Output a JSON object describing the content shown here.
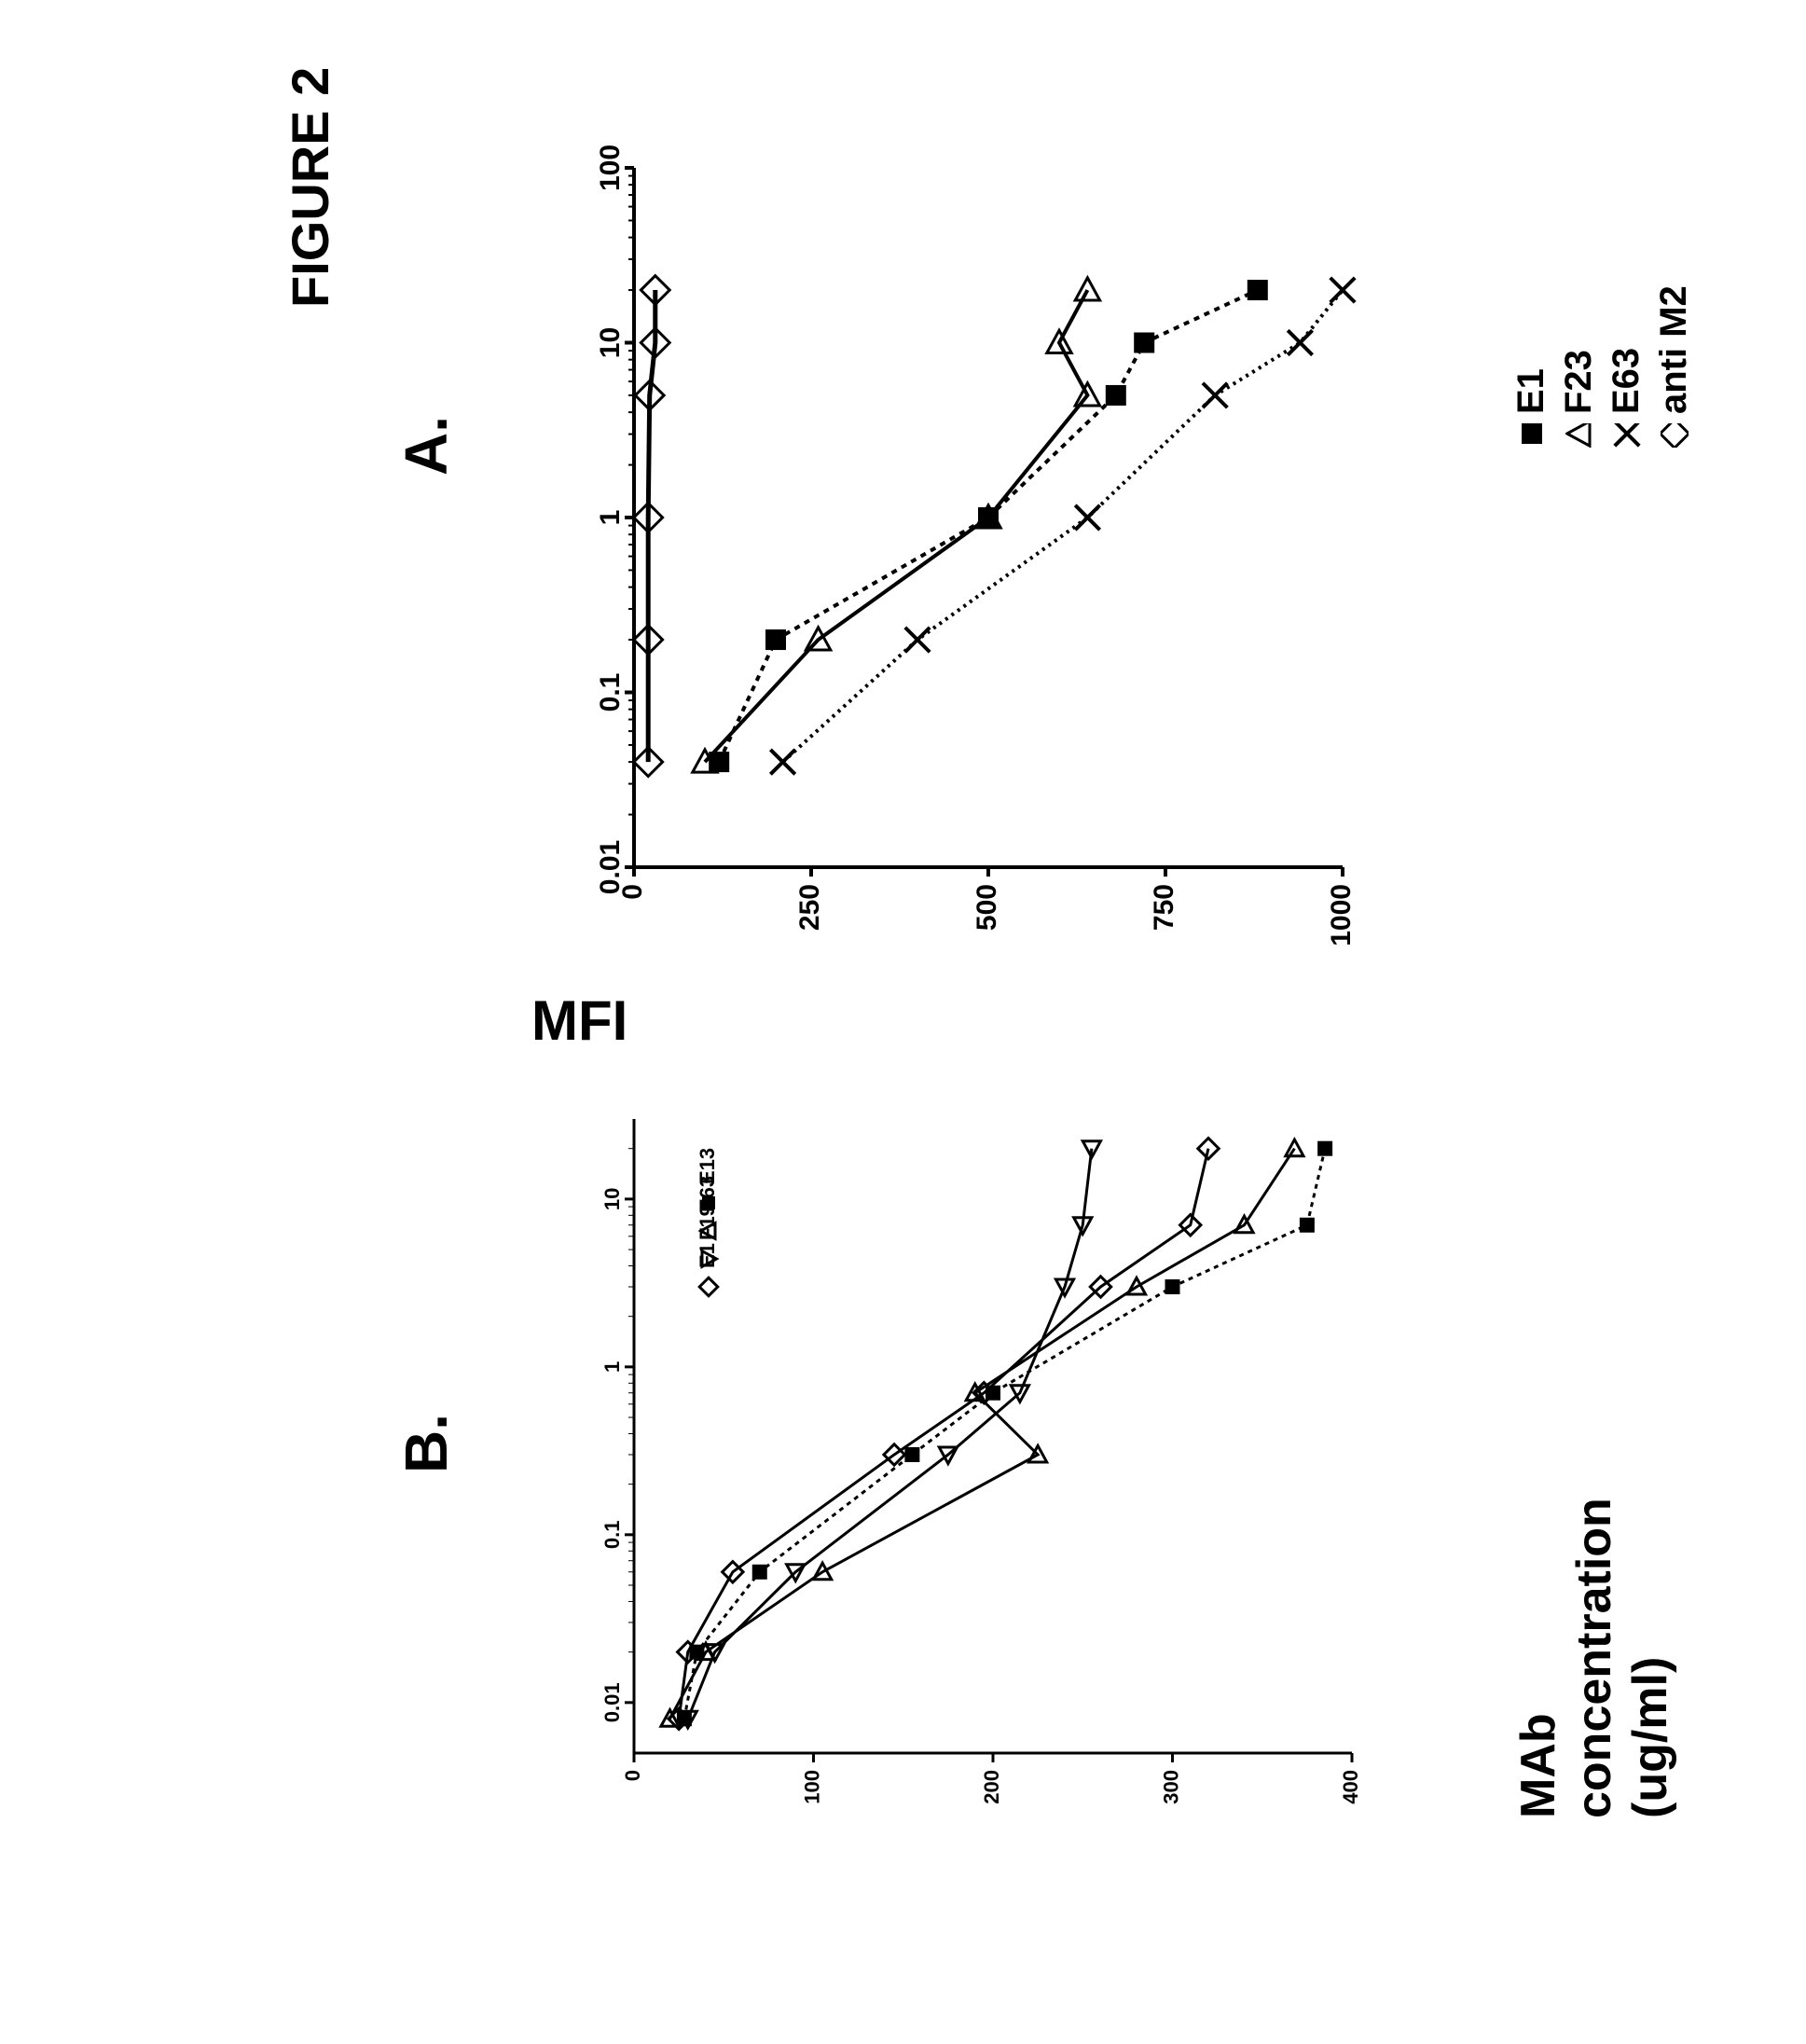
{
  "figure_title": "FIGURE 2",
  "title_fontsize": 56,
  "panelA": {
    "label": "A.",
    "label_fontsize": 64,
    "type": "line-scatter",
    "xscale": "log",
    "xlim": [
      0.01,
      100
    ],
    "ylim": [
      0,
      1000
    ],
    "xtick_labels": [
      "0.01",
      "0.1",
      "1",
      "10",
      "100"
    ],
    "ytick_labels": [
      "0",
      "250",
      "500",
      "750",
      "1000"
    ],
    "axis_color": "#000000",
    "axis_linewidth": 4,
    "tick_fontsize": 30,
    "background_color": "#ffffff",
    "series": [
      {
        "name": "E1",
        "marker": "filled-square",
        "color": "#000000",
        "line_dash": "6,6",
        "line_width": 4,
        "points": [
          {
            "x": 0.04,
            "y": 120
          },
          {
            "x": 0.2,
            "y": 200
          },
          {
            "x": 1,
            "y": 500
          },
          {
            "x": 5,
            "y": 680
          },
          {
            "x": 10,
            "y": 720
          },
          {
            "x": 20,
            "y": 880
          }
        ]
      },
      {
        "name": "F23",
        "marker": "open-triangle",
        "color": "#000000",
        "line_dash": "none",
        "line_width": 4,
        "points": [
          {
            "x": 0.04,
            "y": 100
          },
          {
            "x": 0.2,
            "y": 260
          },
          {
            "x": 1,
            "y": 500
          },
          {
            "x": 5,
            "y": 640
          },
          {
            "x": 10,
            "y": 600
          },
          {
            "x": 20,
            "y": 640
          }
        ]
      },
      {
        "name": "E63",
        "marker": "x",
        "color": "#000000",
        "line_dash": "3,5",
        "line_width": 4,
        "points": [
          {
            "x": 0.04,
            "y": 210
          },
          {
            "x": 0.2,
            "y": 400
          },
          {
            "x": 1,
            "y": 640
          },
          {
            "x": 5,
            "y": 820
          },
          {
            "x": 10,
            "y": 940
          },
          {
            "x": 20,
            "y": 1000
          }
        ]
      },
      {
        "name": "anti M2",
        "marker": "open-diamond",
        "color": "#000000",
        "line_dash": "none",
        "line_width": 5,
        "points": [
          {
            "x": 0.04,
            "y": 20
          },
          {
            "x": 0.2,
            "y": 20
          },
          {
            "x": 1,
            "y": 20
          },
          {
            "x": 5,
            "y": 22
          },
          {
            "x": 10,
            "y": 30
          },
          {
            "x": 20,
            "y": 30
          }
        ]
      }
    ],
    "legend": {
      "fontsize": 40,
      "items": [
        {
          "marker": "filled-square",
          "label": "E1"
        },
        {
          "marker": "open-triangle",
          "label": "F23"
        },
        {
          "marker": "x",
          "label": "E63"
        },
        {
          "marker": "open-diamond",
          "label": "anti M2"
        }
      ]
    }
  },
  "panelB": {
    "label": "B.",
    "label_fontsize": 64,
    "type": "line-scatter",
    "xscale": "log",
    "xlim": [
      0.005,
      30
    ],
    "ylim": [
      0,
      400
    ],
    "xtick_labels": [
      "0.01",
      "0.1",
      "1",
      "10"
    ],
    "ytick_labels": [
      "0",
      "100",
      "200",
      "300",
      "400"
    ],
    "axis_color": "#000000",
    "axis_linewidth": 3,
    "tick_fontsize": 22,
    "background_color": "#ffffff",
    "series": [
      {
        "name": "E13",
        "marker": "filled-square",
        "color": "#000000",
        "line_dash": "5,5",
        "line_width": 3,
        "points": [
          {
            "x": 0.008,
            "y": 28
          },
          {
            "x": 0.02,
            "y": 35
          },
          {
            "x": 0.06,
            "y": 70
          },
          {
            "x": 0.3,
            "y": 155
          },
          {
            "x": 0.7,
            "y": 200
          },
          {
            "x": 3,
            "y": 300
          },
          {
            "x": 7,
            "y": 375
          },
          {
            "x": 20,
            "y": 385
          }
        ]
      },
      {
        "name": "E63",
        "marker": "open-triangle",
        "color": "#000000",
        "line_dash": "none",
        "line_width": 3,
        "points": [
          {
            "x": 0.008,
            "y": 20
          },
          {
            "x": 0.02,
            "y": 40
          },
          {
            "x": 0.06,
            "y": 105
          },
          {
            "x": 0.3,
            "y": 225
          },
          {
            "x": 0.7,
            "y": 190
          },
          {
            "x": 3,
            "y": 280
          },
          {
            "x": 7,
            "y": 340
          },
          {
            "x": 20,
            "y": 368
          }
        ]
      },
      {
        "name": "F19",
        "marker": "open-triangle-down",
        "color": "#000000",
        "line_dash": "none",
        "line_width": 3,
        "points": [
          {
            "x": 0.008,
            "y": 30
          },
          {
            "x": 0.02,
            "y": 45
          },
          {
            "x": 0.06,
            "y": 90
          },
          {
            "x": 0.3,
            "y": 175
          },
          {
            "x": 0.7,
            "y": 215
          },
          {
            "x": 3,
            "y": 240
          },
          {
            "x": 7,
            "y": 250
          },
          {
            "x": 20,
            "y": 255
          }
        ]
      },
      {
        "name": "E1",
        "marker": "open-diamond",
        "color": "#000000",
        "line_dash": "none",
        "line_width": 3,
        "points": [
          {
            "x": 0.008,
            "y": 25
          },
          {
            "x": 0.02,
            "y": 30
          },
          {
            "x": 0.06,
            "y": 55
          },
          {
            "x": 0.3,
            "y": 145
          },
          {
            "x": 0.7,
            "y": 195
          },
          {
            "x": 3,
            "y": 260
          },
          {
            "x": 7,
            "y": 310
          },
          {
            "x": 20,
            "y": 320
          }
        ]
      }
    ],
    "legend": {
      "fontsize": 22,
      "items": [
        {
          "marker": "filled-square",
          "label": "E13"
        },
        {
          "marker": "open-triangle",
          "label": "E63"
        },
        {
          "marker": "open-triangle-down",
          "label": "F19"
        },
        {
          "marker": "open-diamond",
          "label": "E1"
        }
      ]
    }
  },
  "shared_axes": {
    "ylabel": "MFI",
    "ylabel_fontsize": 60,
    "xlabel": "MAb concentration (ug/ml)",
    "xlabel_fontsize": 52
  },
  "layout": {
    "rotation_deg": -90,
    "colors": {
      "text": "#000000",
      "bg": "#ffffff"
    }
  }
}
